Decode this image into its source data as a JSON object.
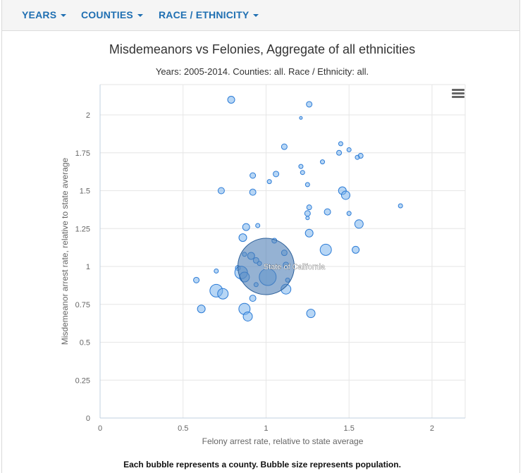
{
  "nav": {
    "items": [
      {
        "label": "YEARS"
      },
      {
        "label": "COUNTIES"
      },
      {
        "label": "RACE / ETHNICITY"
      }
    ]
  },
  "chart": {
    "title": "Misdemeanors vs Felonies, Aggregate of all ethnicities",
    "subtitle": "Years: 2005-2014. Counties: all. Race / Ethnicity: all.",
    "menu_icon": "hamburger-menu-icon"
  },
  "footnote": "Each bubble represents a county. Bubble size represents population.",
  "colors": {
    "accent": "#1f6fb2",
    "bubble_fill": "#7cb5ec",
    "bubble_stroke": "#2b7bd6",
    "grid": "#e6e6e6"
  },
  "chart_data": {
    "type": "scatter",
    "title": "Misdemeanors vs Felonies, Aggregate of all ethnicities",
    "subtitle": "Years: 2005-2014. Counties: all. Race / Ethnicity: all.",
    "xlabel": "Felony arrest rate, relative to state average",
    "ylabel": "Misdemeanor arrest rate, relative to state average",
    "xlim": [
      0,
      2.2
    ],
    "ylim": [
      0,
      2.2
    ],
    "xticks": [
      "0",
      "0.5",
      "1",
      "1.5",
      "2"
    ],
    "yticks": [
      "0",
      "0.25",
      "0.5",
      "0.75",
      "1",
      "1.25",
      "1.5",
      "1.75",
      "2"
    ],
    "grid": true,
    "legend": "none",
    "size_meaning": "population (relative)",
    "highlight": {
      "label": "State of California",
      "x": 1.0,
      "y": 1.0,
      "size": 40
    },
    "points": [
      {
        "x": 0.79,
        "y": 2.1,
        "size": 5
      },
      {
        "x": 1.26,
        "y": 2.07,
        "size": 4
      },
      {
        "x": 1.21,
        "y": 1.98,
        "size": 2
      },
      {
        "x": 1.11,
        "y": 1.79,
        "size": 4
      },
      {
        "x": 1.45,
        "y": 1.81,
        "size": 3
      },
      {
        "x": 1.5,
        "y": 1.77,
        "size": 3
      },
      {
        "x": 1.44,
        "y": 1.75,
        "size": 3.5
      },
      {
        "x": 1.57,
        "y": 1.73,
        "size": 3.5
      },
      {
        "x": 1.55,
        "y": 1.72,
        "size": 3
      },
      {
        "x": 1.34,
        "y": 1.69,
        "size": 3
      },
      {
        "x": 1.21,
        "y": 1.66,
        "size": 3
      },
      {
        "x": 1.22,
        "y": 1.62,
        "size": 3
      },
      {
        "x": 1.06,
        "y": 1.61,
        "size": 4
      },
      {
        "x": 0.92,
        "y": 1.6,
        "size": 4
      },
      {
        "x": 1.02,
        "y": 1.56,
        "size": 3
      },
      {
        "x": 1.25,
        "y": 1.54,
        "size": 3
      },
      {
        "x": 0.73,
        "y": 1.5,
        "size": 4.5
      },
      {
        "x": 0.92,
        "y": 1.49,
        "size": 4.5
      },
      {
        "x": 1.46,
        "y": 1.5,
        "size": 5.5
      },
      {
        "x": 1.48,
        "y": 1.47,
        "size": 6
      },
      {
        "x": 1.81,
        "y": 1.4,
        "size": 3
      },
      {
        "x": 1.26,
        "y": 1.39,
        "size": 3.5
      },
      {
        "x": 1.37,
        "y": 1.36,
        "size": 4.5
      },
      {
        "x": 1.25,
        "y": 1.35,
        "size": 4
      },
      {
        "x": 1.5,
        "y": 1.35,
        "size": 3
      },
      {
        "x": 1.25,
        "y": 1.32,
        "size": 2.5
      },
      {
        "x": 0.88,
        "y": 1.26,
        "size": 5
      },
      {
        "x": 0.95,
        "y": 1.27,
        "size": 3
      },
      {
        "x": 1.56,
        "y": 1.28,
        "size": 6
      },
      {
        "x": 1.26,
        "y": 1.22,
        "size": 5.5
      },
      {
        "x": 0.86,
        "y": 1.19,
        "size": 5.5
      },
      {
        "x": 1.05,
        "y": 1.17,
        "size": 3.5
      },
      {
        "x": 1.36,
        "y": 1.11,
        "size": 8
      },
      {
        "x": 1.54,
        "y": 1.11,
        "size": 5
      },
      {
        "x": 0.87,
        "y": 1.08,
        "size": 3
      },
      {
        "x": 0.91,
        "y": 1.07,
        "size": 5
      },
      {
        "x": 1.11,
        "y": 1.09,
        "size": 4
      },
      {
        "x": 0.94,
        "y": 1.04,
        "size": 4
      },
      {
        "x": 0.96,
        "y": 1.02,
        "size": 3
      },
      {
        "x": 1.12,
        "y": 1.01,
        "size": 4
      },
      {
        "x": 0.83,
        "y": 0.99,
        "size": 3.5
      },
      {
        "x": 0.7,
        "y": 0.97,
        "size": 3
      },
      {
        "x": 0.85,
        "y": 0.96,
        "size": 9
      },
      {
        "x": 0.87,
        "y": 0.93,
        "size": 7
      },
      {
        "x": 1.01,
        "y": 0.93,
        "size": 12
      },
      {
        "x": 1.13,
        "y": 0.91,
        "size": 3
      },
      {
        "x": 0.58,
        "y": 0.91,
        "size": 4
      },
      {
        "x": 0.94,
        "y": 0.88,
        "size": 3
      },
      {
        "x": 1.12,
        "y": 0.85,
        "size": 7
      },
      {
        "x": 0.7,
        "y": 0.84,
        "size": 9
      },
      {
        "x": 0.74,
        "y": 0.82,
        "size": 7.5
      },
      {
        "x": 0.92,
        "y": 0.79,
        "size": 4.5
      },
      {
        "x": 0.61,
        "y": 0.72,
        "size": 5.5
      },
      {
        "x": 0.87,
        "y": 0.72,
        "size": 8
      },
      {
        "x": 1.27,
        "y": 0.69,
        "size": 6
      },
      {
        "x": 0.89,
        "y": 0.67,
        "size": 6.5
      }
    ]
  }
}
